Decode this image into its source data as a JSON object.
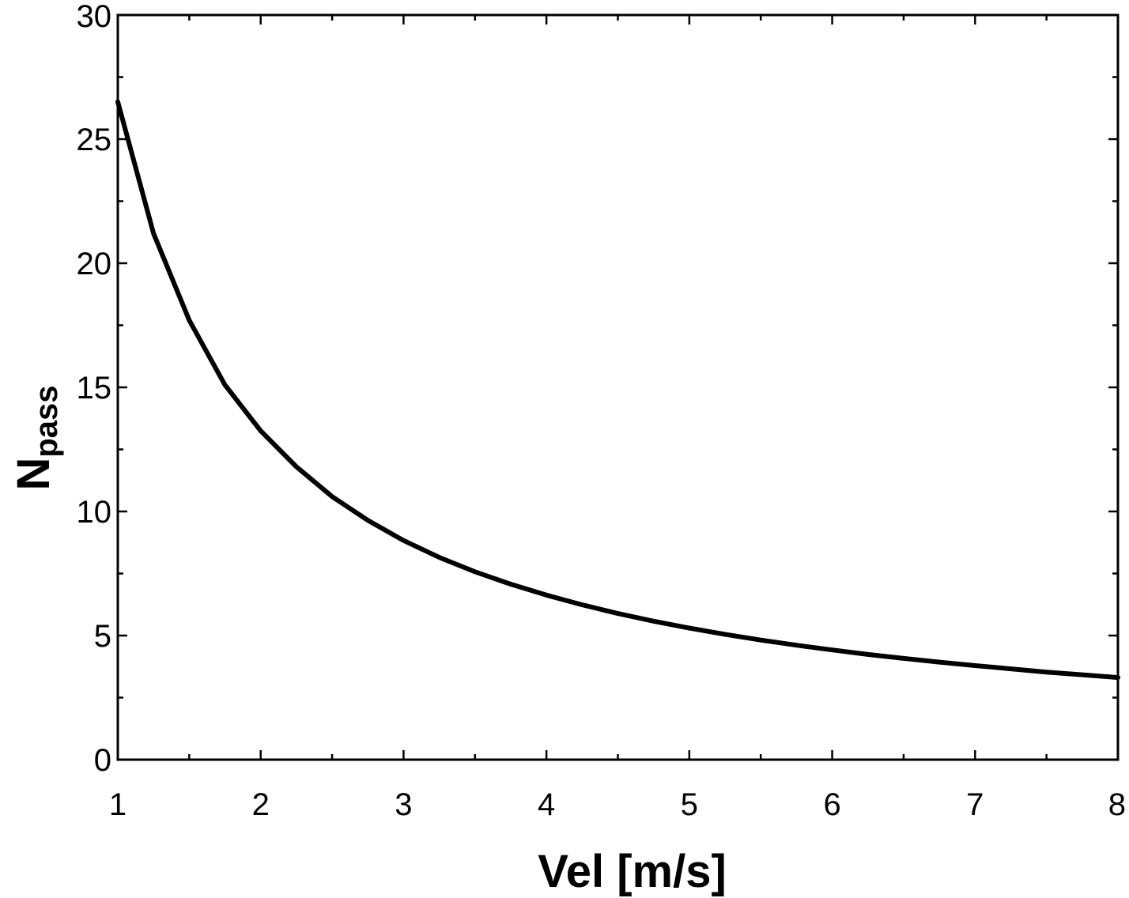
{
  "chart_data": {
    "type": "line",
    "title": "",
    "xlabel": "Vel  [m/s]",
    "ylabel_main": "N",
    "ylabel_sub": "pass",
    "xlim": [
      1,
      8
    ],
    "ylim": [
      0,
      30
    ],
    "xticks": [
      1,
      2,
      3,
      4,
      5,
      6,
      7,
      8
    ],
    "yticks": [
      0,
      5,
      10,
      15,
      20,
      25,
      30
    ],
    "grid": false,
    "series": [
      {
        "name": "Npass",
        "color": "#000000",
        "x": [
          1.0,
          1.25,
          1.5,
          1.75,
          2.0,
          2.25,
          2.5,
          2.75,
          3.0,
          3.25,
          3.5,
          3.75,
          4.0,
          4.25,
          4.5,
          4.75,
          5.0,
          5.25,
          5.5,
          5.75,
          6.0,
          6.25,
          6.5,
          6.75,
          7.0,
          7.25,
          7.5,
          7.75,
          8.0
        ],
        "y": [
          26.5,
          21.2,
          17.7,
          15.1,
          13.25,
          11.8,
          10.6,
          9.64,
          8.83,
          8.15,
          7.57,
          7.07,
          6.63,
          6.24,
          5.89,
          5.58,
          5.3,
          5.05,
          4.82,
          4.61,
          4.42,
          4.24,
          4.08,
          3.93,
          3.79,
          3.66,
          3.53,
          3.42,
          3.31
        ]
      }
    ]
  }
}
